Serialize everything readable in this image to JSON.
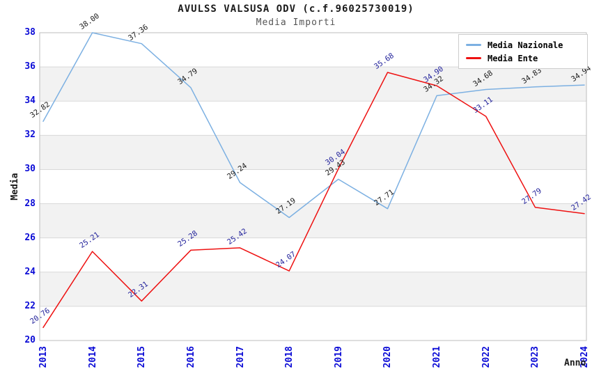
{
  "header": {
    "title": "AVULSS VALSUSA ODV (c.f.96025730019)",
    "subtitle": "Media Importi"
  },
  "chart_data": {
    "type": "line",
    "title": "AVULSS VALSUSA ODV (c.f.96025730019)",
    "subtitle": "Media Importi",
    "xlabel": "Anno",
    "ylabel": "Media",
    "categories": [
      "2013",
      "2014",
      "2015",
      "2016",
      "2017",
      "2018",
      "2019",
      "2020",
      "2021",
      "2022",
      "2023",
      "2024"
    ],
    "ylim": [
      20,
      38
    ],
    "ytick_step": 2,
    "grid": "horizontal gridlines with alternating gray bands",
    "legend_position": "top-right",
    "series": [
      {
        "name": "Media Nazionale",
        "color": "#7cb0e2",
        "label_color": "#1a1a1a",
        "values": [
          32.82,
          38.0,
          37.36,
          34.79,
          29.24,
          27.19,
          29.43,
          27.71,
          34.32,
          34.68,
          34.83,
          34.94
        ]
      },
      {
        "name": "Media Ente",
        "color": "#ee1111",
        "label_color": "#22229b",
        "values": [
          20.76,
          25.21,
          22.31,
          25.28,
          25.42,
          24.07,
          30.04,
          35.68,
          34.9,
          33.11,
          27.79,
          27.42
        ]
      }
    ],
    "colors": {
      "tick_label": "#0a0ad6",
      "gridline": "#d9d9d9",
      "band": "#f2f2f2",
      "border": "#bdbdbd",
      "background": "#ffffff"
    }
  }
}
